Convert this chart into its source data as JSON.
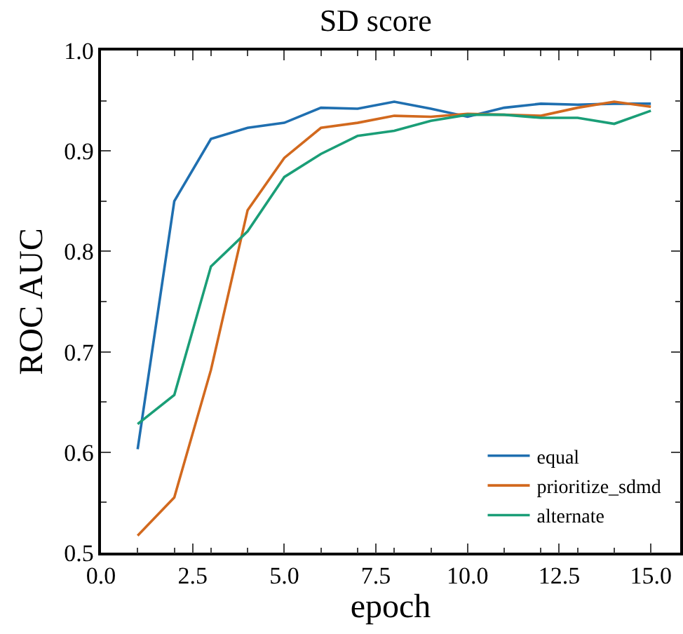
{
  "chart_data": {
    "type": "line",
    "title": "SD score",
    "xlabel": "epoch",
    "ylabel": "ROC AUC",
    "x": [
      1,
      2,
      3,
      4,
      5,
      6,
      7,
      8,
      9,
      10,
      11,
      12,
      13,
      14,
      15
    ],
    "series": [
      {
        "name": "equal",
        "color": "#1f6fb0",
        "values": [
          0.603,
          0.85,
          0.912,
          0.923,
          0.928,
          0.943,
          0.942,
          0.949,
          0.942,
          0.934,
          0.943,
          0.947,
          0.946,
          0.947,
          0.947
        ]
      },
      {
        "name": "prioritize_sdmd",
        "color": "#d2691e",
        "values": [
          0.517,
          0.555,
          0.682,
          0.841,
          0.893,
          0.923,
          0.928,
          0.935,
          0.934,
          0.937,
          0.936,
          0.935,
          0.943,
          0.949,
          0.944
        ]
      },
      {
        "name": "alternate",
        "color": "#1a9e77",
        "values": [
          0.628,
          0.657,
          0.785,
          0.82,
          0.874,
          0.897,
          0.915,
          0.92,
          0.93,
          0.936,
          0.936,
          0.933,
          0.933,
          0.927,
          0.94
        ]
      }
    ],
    "xlim": [
      0,
      15.8
    ],
    "ylim": [
      0.5,
      1.0
    ],
    "xticks": [
      {
        "value": 0,
        "label": "0.0"
      },
      {
        "value": 2.5,
        "label": "2.5"
      },
      {
        "value": 5,
        "label": "5.0"
      },
      {
        "value": 7.5,
        "label": "7.5"
      },
      {
        "value": 10,
        "label": "10.0"
      },
      {
        "value": 12.5,
        "label": "12.5"
      },
      {
        "value": 15,
        "label": "15.0"
      }
    ],
    "yticks": [
      {
        "value": 0.5,
        "label": "0.5"
      },
      {
        "value": 0.6,
        "label": "0.6"
      },
      {
        "value": 0.7,
        "label": "0.7"
      },
      {
        "value": 0.8,
        "label": "0.8"
      },
      {
        "value": 0.9,
        "label": "0.9"
      },
      {
        "value": 1.0,
        "label": "1.0"
      }
    ],
    "grid": false,
    "legend": "bottom right",
    "marker": "none",
    "line_style": "solid"
  }
}
